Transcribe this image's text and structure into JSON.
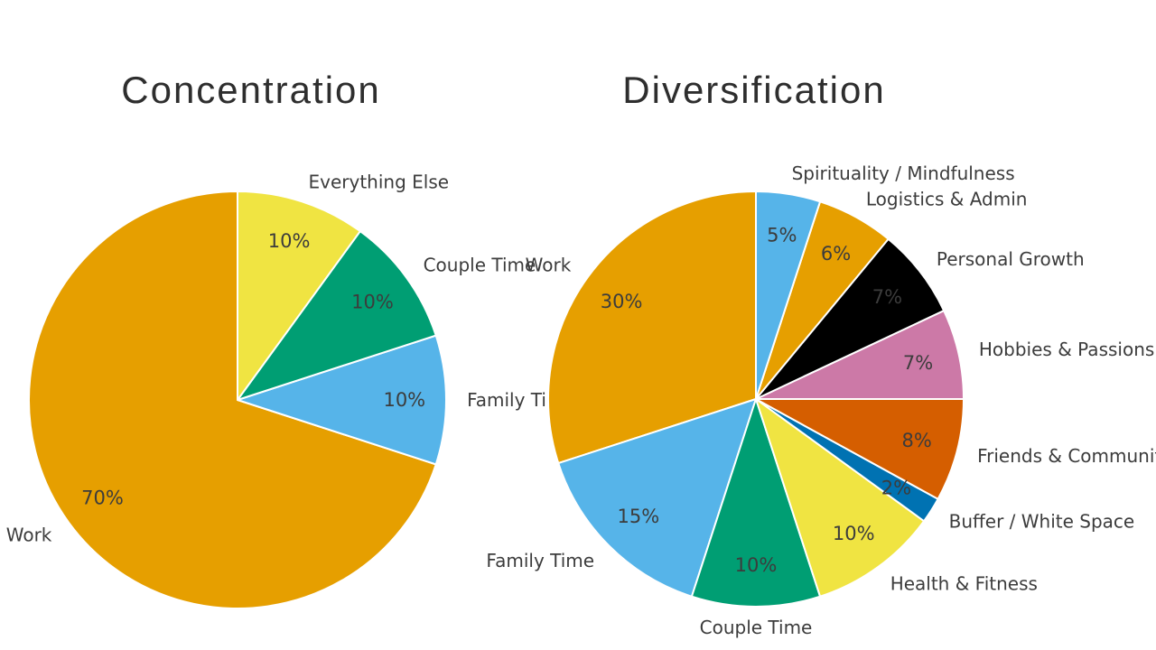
{
  "figure": {
    "background": "#ffffff",
    "text_color": "#3c3c3c",
    "title_color": "#2e2e2e",
    "slice_border_color": "#ffffff"
  },
  "chart_data": [
    {
      "type": "pie",
      "title": "Concentration",
      "start_angle": 90,
      "counterclock": true,
      "pct_distance": 0.8,
      "label_distance": 1.1,
      "slices": [
        {
          "label": "Work",
          "value": 70,
          "pct_label": "70%",
          "color": "#E69F00"
        },
        {
          "label": "Family Time",
          "value": 10,
          "pct_label": "10%",
          "color": "#56B4E9"
        },
        {
          "label": "Couple Time",
          "value": 10,
          "pct_label": "10%",
          "color": "#009E73"
        },
        {
          "label": "Everything Else",
          "value": 10,
          "pct_label": "10%",
          "color": "#F0E442"
        }
      ]
    },
    {
      "type": "pie",
      "title": "Diversification",
      "start_angle": 90,
      "counterclock": true,
      "pct_distance": 0.8,
      "label_distance": 1.1,
      "slices": [
        {
          "label": "Work",
          "value": 30,
          "pct_label": "30%",
          "color": "#E69F00"
        },
        {
          "label": "Family Time",
          "value": 15,
          "pct_label": "15%",
          "color": "#56B4E9"
        },
        {
          "label": "Couple Time",
          "value": 10,
          "pct_label": "10%",
          "color": "#009E73"
        },
        {
          "label": "Health & Fitness",
          "value": 10,
          "pct_label": "10%",
          "color": "#F0E442"
        },
        {
          "label": "Buffer / White Space",
          "value": 2,
          "pct_label": "2%",
          "color": "#0072B2"
        },
        {
          "label": "Friends & Community",
          "value": 8,
          "pct_label": "8%",
          "color": "#D55E00"
        },
        {
          "label": "Hobbies & Passions",
          "value": 7,
          "pct_label": "7%",
          "color": "#CC79A7"
        },
        {
          "label": "Personal Growth",
          "value": 7,
          "pct_label": "7%",
          "color": "#000000"
        },
        {
          "label": "Logistics & Admin",
          "value": 6,
          "pct_label": "6%",
          "color": "#E69F00"
        },
        {
          "label": "Spirituality / Mindfulness",
          "value": 5,
          "pct_label": "5%",
          "color": "#56B4E9"
        }
      ]
    }
  ]
}
